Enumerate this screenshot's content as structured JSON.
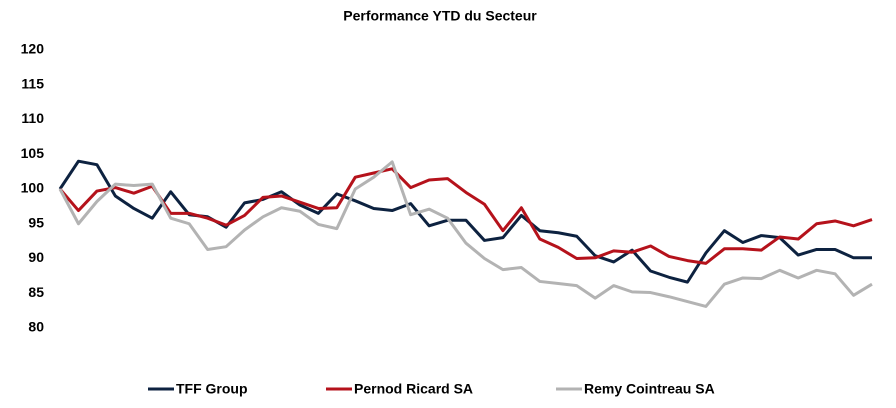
{
  "chart_data": {
    "type": "line",
    "title": "Performance YTD du Secteur",
    "ylim": [
      80,
      120
    ],
    "yticks": [
      80,
      85,
      90,
      95,
      100,
      105,
      110,
      115,
      120
    ],
    "grid": false,
    "legend": "bottom",
    "series": [
      {
        "name": "TFF Group",
        "color": "#0d2240",
        "values": [
          100,
          104,
          103.5,
          99,
          97.2,
          95.8,
          99.6,
          96.3,
          96,
          94.5,
          98,
          98.5,
          99.6,
          97.7,
          96.5,
          99.3,
          98.3,
          97.2,
          96.9,
          97.9,
          94.7,
          95.5,
          95.5,
          92.6,
          93,
          96.2,
          94,
          93.7,
          93.2,
          90.4,
          89.5,
          91.2,
          88.2,
          87.3,
          86.6,
          90.8,
          94,
          92.3,
          93.3,
          93,
          90.5,
          91.3,
          91.3,
          90.1,
          90.1
        ]
      },
      {
        "name": "Pernod Ricard SA",
        "color": "#b5121b",
        "values": [
          100,
          96.9,
          99.7,
          100.2,
          99.4,
          100.4,
          96.5,
          96.5,
          95.8,
          94.8,
          96.2,
          98.8,
          99,
          98.1,
          97.2,
          97.3,
          101.7,
          102.3,
          102.9,
          100.2,
          101.3,
          101.5,
          99.5,
          97.8,
          94,
          97.3,
          92.8,
          91.6,
          90,
          90.1,
          91.1,
          90.9,
          91.8,
          90.3,
          89.7,
          89.3,
          91.4,
          91.4,
          91.2,
          93.1,
          92.8,
          95,
          95.4,
          94.7,
          95.6
        ]
      },
      {
        "name": "Remy Cointreau SA",
        "color": "#b3b3b3",
        "values": [
          100,
          95,
          98.2,
          100.7,
          100.5,
          100.7,
          95.8,
          95,
          91.3,
          91.7,
          94.1,
          96,
          97.3,
          96.8,
          94.9,
          94.3,
          100,
          101.7,
          103.9,
          96.3,
          97.1,
          95.8,
          92.2,
          90,
          88.4,
          88.7,
          86.7,
          86.4,
          86.1,
          84.3,
          86.1,
          85.2,
          85.1,
          84.5,
          83.8,
          83.1,
          86.3,
          87.2,
          87.1,
          88.3,
          87.2,
          88.3,
          87.8,
          84.7,
          86.3
        ]
      }
    ]
  }
}
